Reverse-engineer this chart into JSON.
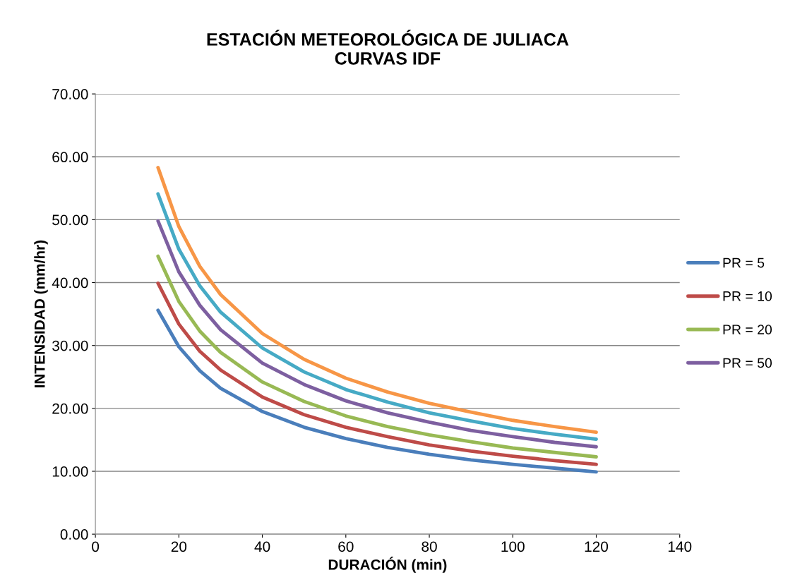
{
  "chart_data": {
    "type": "line",
    "title": "ESTACIÓN METEOROLÓGICA DE JULIACA\nCURVAS IDF",
    "xlabel": "DURACIÓN (min)",
    "ylabel": "INTENSIDAD (mm/hr)",
    "x": [
      15,
      20,
      25,
      30,
      40,
      50,
      60,
      70,
      80,
      90,
      100,
      110,
      120
    ],
    "series": [
      {
        "name": "PR = 5",
        "color": "#4a7ebb",
        "values": [
          35.6,
          29.8,
          26.0,
          23.2,
          19.5,
          17.0,
          15.2,
          13.8,
          12.7,
          11.8,
          11.1,
          10.5,
          9.9
        ]
      },
      {
        "name": "PR = 10",
        "color": "#be4b48",
        "values": [
          39.9,
          33.4,
          29.1,
          26.1,
          21.8,
          19.0,
          17.0,
          15.5,
          14.2,
          13.2,
          12.4,
          11.7,
          11.1
        ]
      },
      {
        "name": "PR = 20",
        "color": "#98b954",
        "values": [
          44.2,
          37.0,
          32.3,
          28.9,
          24.2,
          21.1,
          18.8,
          17.1,
          15.8,
          14.7,
          13.7,
          13.0,
          12.3
        ]
      },
      {
        "name": "PR = 50",
        "color": "#7d5fa0",
        "values": [
          49.8,
          41.7,
          36.4,
          32.5,
          27.2,
          23.8,
          21.2,
          19.3,
          17.8,
          16.5,
          15.5,
          14.6,
          13.9
        ]
      },
      {
        "color": "#46aac5",
        "values": [
          54.1,
          45.3,
          39.5,
          35.3,
          29.6,
          25.8,
          23.0,
          21.0,
          19.3,
          18.0,
          16.8,
          15.9,
          15.1
        ]
      },
      {
        "color": "#f79646",
        "values": [
          58.3,
          48.9,
          42.6,
          38.1,
          31.9,
          27.8,
          24.8,
          22.6,
          20.8,
          19.4,
          18.1,
          17.1,
          16.2
        ]
      }
    ],
    "xlim": [
      0,
      140
    ],
    "xticks": [
      0,
      20,
      40,
      60,
      80,
      100,
      120,
      140
    ],
    "ylim": [
      0,
      70
    ],
    "yticks": [
      {
        "value": 0,
        "label": "0.00"
      },
      {
        "value": 10,
        "label": "10.00"
      },
      {
        "value": 20,
        "label": "20.00"
      },
      {
        "value": 30,
        "label": "30.00"
      },
      {
        "value": 40,
        "label": "40.00"
      },
      {
        "value": 50,
        "label": "50.00"
      },
      {
        "value": 60,
        "label": "60.00"
      },
      {
        "value": 70,
        "label": "70.00"
      }
    ],
    "grid": "y",
    "legend": "right",
    "marker": "none",
    "line_style": "solid"
  }
}
